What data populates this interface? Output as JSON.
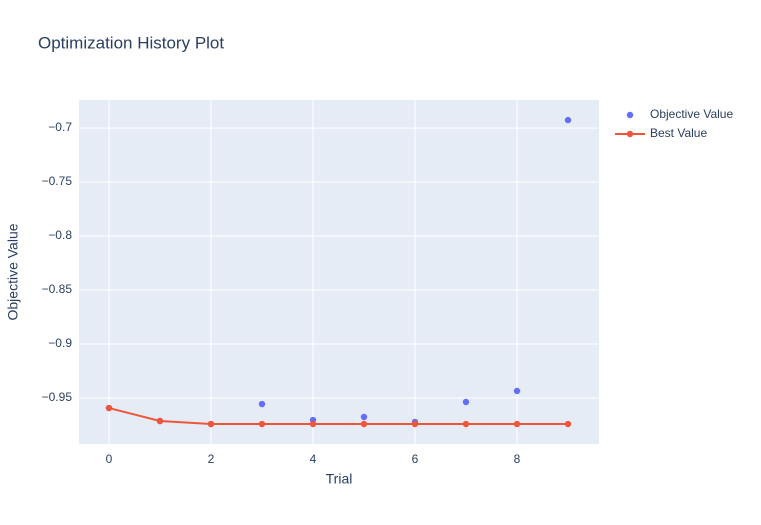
{
  "chart_data": {
    "type": "scatter",
    "title": "Optimization History Plot",
    "x_label": "Trial",
    "y_label": "Objective Value",
    "x": [
      0,
      1,
      2,
      3,
      4,
      5,
      6,
      7,
      8,
      9
    ],
    "series": [
      {
        "name": "Objective Value",
        "color": "#636efa",
        "mode": "markers",
        "values": [
          -0.9593,
          -0.9713,
          -0.9741,
          -0.9556,
          -0.9704,
          -0.9676,
          -0.9722,
          -0.9537,
          -0.9435,
          -0.6926
        ]
      },
      {
        "name": "Best Value",
        "color": "#ef553b",
        "mode": "lines+markers",
        "values": [
          -0.9593,
          -0.9713,
          -0.9741,
          -0.9741,
          -0.9741,
          -0.9741,
          -0.9741,
          -0.9741,
          -0.9741,
          -0.9741
        ]
      }
    ],
    "xlim": [
      -0.588,
      9.608
    ],
    "xticks": [
      0,
      2,
      4,
      6,
      8
    ],
    "ylim": [
      -0.9926,
      -0.674
    ],
    "yticks": [
      {
        "value": -0.95,
        "label": "−0.95"
      },
      {
        "value": -0.9,
        "label": "−0.9"
      },
      {
        "value": -0.85,
        "label": "−0.85"
      },
      {
        "value": -0.8,
        "label": "−0.8"
      },
      {
        "value": -0.75,
        "label": "−0.75"
      },
      {
        "value": -0.7,
        "label": "−0.7"
      }
    ],
    "grid": true
  }
}
